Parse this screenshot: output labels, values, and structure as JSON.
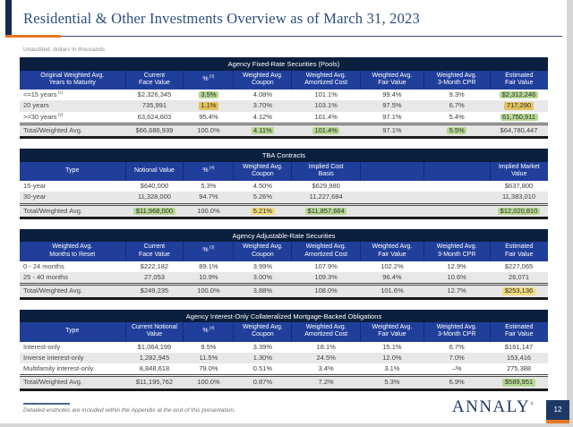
{
  "slide": {
    "title": "Residential & Other Investments Overview as of March 31, 2023",
    "subtitle": "Unaudited, dollars in thousands",
    "footnote": "Detailed endnotes are included within the Appendix at the end of this presentation.",
    "logo_text": "ANNALY",
    "logo_mark": "®",
    "page_number": "12"
  },
  "colors": {
    "accent_orange": "#e87722",
    "brand_navy": "#1d3865",
    "table_title_bar": "#0b1f3e",
    "column_header_blue": "#203f9a",
    "highlight_green": "#b6d893",
    "highlight_yellow": "#f1da7e",
    "highlight_gold": "#e2c25f"
  },
  "tables": [
    {
      "id": "agency-fixed-rate-securities",
      "title": "Agency Fixed-Rate Securities (Pools)",
      "headers": [
        {
          "text": "Original Weighted Avg.\nYears to Maturity"
        },
        {
          "text": "Current\nFace Value"
        },
        {
          "text": "%",
          "sup": "(3)"
        },
        {
          "text": "Weighted Avg.\nCoupon"
        },
        {
          "text": "Weighted Avg.\nAmortized Cost"
        },
        {
          "text": "Weighted Avg.\nFair Value"
        },
        {
          "text": "Weighted Avg.\n3-Month CPR"
        },
        {
          "text": "Estimated\nFair Value"
        }
      ],
      "rows": [
        [
          {
            "v": "<=15 years",
            "sup": "(1)"
          },
          {
            "v": "$2,326,345"
          },
          {
            "v": "3.5%",
            "hl": "g"
          },
          {
            "v": "4.08%"
          },
          {
            "v": "101.1%"
          },
          {
            "v": "99.4%"
          },
          {
            "v": "9.3%"
          },
          {
            "v": "$2,312,246",
            "hl": "g"
          }
        ],
        [
          {
            "v": "20 years"
          },
          {
            "v": "735,991"
          },
          {
            "v": "1.1%",
            "hl": "o"
          },
          {
            "v": "3.70%"
          },
          {
            "v": "103.1%"
          },
          {
            "v": "97.5%"
          },
          {
            "v": "6.7%"
          },
          {
            "v": "717,290",
            "hl": "o"
          }
        ],
        [
          {
            "v": ">=30 years",
            "sup": "(2)"
          },
          {
            "v": "63,624,603"
          },
          {
            "v": "95.4%"
          },
          {
            "v": "4.12%"
          },
          {
            "v": "101.4%"
          },
          {
            "v": "97.1%"
          },
          {
            "v": "5.4%"
          },
          {
            "v": "61,750,911",
            "hl": "g"
          }
        ]
      ],
      "total": [
        {
          "v": "Total/Weighted Avg."
        },
        {
          "v": "$66,686,939"
        },
        {
          "v": "100.0%"
        },
        {
          "v": "4.11%",
          "hl": "g"
        },
        {
          "v": "101.4%",
          "hl": "g"
        },
        {
          "v": "97.1%"
        },
        {
          "v": "5.5%",
          "hl": "g"
        },
        {
          "v": "$64,780,447"
        }
      ]
    },
    {
      "id": "tba-contracts",
      "title": "TBA Contracts",
      "headers": [
        {
          "text": "Type"
        },
        {
          "text": "Notional Value"
        },
        {
          "text": "%",
          "sup": "(4)"
        },
        {
          "text": "Weighted Avg.\nCoupon"
        },
        {
          "text": "Implied Cost\nBasis"
        },
        {
          "text": ""
        },
        {
          "text": ""
        },
        {
          "text": "Implied Market\nValue"
        }
      ],
      "rows": [
        [
          {
            "v": "15-year"
          },
          {
            "v": "$640,000"
          },
          {
            "v": "5.3%"
          },
          {
            "v": "4.50%"
          },
          {
            "v": "$629,980"
          },
          {
            "v": ""
          },
          {
            "v": ""
          },
          {
            "v": "$637,800"
          }
        ],
        [
          {
            "v": "30-year"
          },
          {
            "v": "11,328,000"
          },
          {
            "v": "94.7%"
          },
          {
            "v": "5.26%"
          },
          {
            "v": "11,227,684"
          },
          {
            "v": ""
          },
          {
            "v": ""
          },
          {
            "v": "11,383,010"
          }
        ]
      ],
      "total": [
        {
          "v": "Total/Weighted Avg."
        },
        {
          "v": "$11,968,000",
          "hl": "g"
        },
        {
          "v": "100.0%"
        },
        {
          "v": "5.21%",
          "hl": "y"
        },
        {
          "v": "$11,857,664",
          "hl": "g"
        },
        {
          "v": ""
        },
        {
          "v": ""
        },
        {
          "v": "$12,020,810",
          "hl": "g"
        }
      ]
    },
    {
      "id": "agency-adjustable-rate-securities",
      "title": "Agency Adjustable-Rate Securities",
      "headers": [
        {
          "text": "Weighted Avg.\nMonths to Reset"
        },
        {
          "text": "Current\nFace Value"
        },
        {
          "text": "%",
          "sup": "(3)"
        },
        {
          "text": "Weighted Avg.\nCoupon"
        },
        {
          "text": "Weighted Avg.\nAmortized Cost"
        },
        {
          "text": "Weighted Avg.\nFair Value"
        },
        {
          "text": "Weighted Avg.\n3-Month CPR"
        },
        {
          "text": "Estimated\nFair Value"
        }
      ],
      "rows": [
        [
          {
            "v": "0 - 24 months"
          },
          {
            "v": "$222,182"
          },
          {
            "v": "89.1%"
          },
          {
            "v": "3.99%"
          },
          {
            "v": "107.9%"
          },
          {
            "v": "102.2%"
          },
          {
            "v": "12.9%"
          },
          {
            "v": "$227,065"
          }
        ],
        [
          {
            "v": "25 - 40 months"
          },
          {
            "v": "27,053"
          },
          {
            "v": "10.9%"
          },
          {
            "v": "3.00%"
          },
          {
            "v": "109.3%"
          },
          {
            "v": "96.4%"
          },
          {
            "v": "10.6%"
          },
          {
            "v": "26,071"
          }
        ]
      ],
      "total": [
        {
          "v": "Total/Weighted Avg."
        },
        {
          "v": "$249,235"
        },
        {
          "v": "100.0%"
        },
        {
          "v": "3.88%"
        },
        {
          "v": "108.0%"
        },
        {
          "v": "101.6%"
        },
        {
          "v": "12.7%"
        },
        {
          "v": "$253,136",
          "hl": "y"
        }
      ]
    },
    {
      "id": "agency-interest-only-cmo",
      "title": "Agency Interest-Only Collateralized Mortgage-Backed Obligations",
      "headers": [
        {
          "text": "Type"
        },
        {
          "text": "Current Notional\nValue"
        },
        {
          "text": "%",
          "sup": "(4)"
        },
        {
          "text": "Weighted Avg.\nCoupon"
        },
        {
          "text": "Weighted Avg.\nAmortized Cost"
        },
        {
          "text": "Weighted Avg.\nFair Value"
        },
        {
          "text": "Weighted Avg.\n3-Month CPR"
        },
        {
          "text": "Estimated\nFair Value"
        }
      ],
      "rows": [
        [
          {
            "v": "Interest-only"
          },
          {
            "v": "$1,064,199"
          },
          {
            "v": "9.5%"
          },
          {
            "v": "3.39%"
          },
          {
            "v": "18.1%"
          },
          {
            "v": "15.1%"
          },
          {
            "v": "6.7%"
          },
          {
            "v": "$161,147"
          }
        ],
        [
          {
            "v": "Inverse interest-only"
          },
          {
            "v": "1,282,945"
          },
          {
            "v": "11.5%"
          },
          {
            "v": "1.30%"
          },
          {
            "v": "24.5%"
          },
          {
            "v": "12.0%"
          },
          {
            "v": "7.0%"
          },
          {
            "v": "153,416"
          }
        ],
        [
          {
            "v": "Multifamily interest-only"
          },
          {
            "v": "8,848,618"
          },
          {
            "v": "79.0%"
          },
          {
            "v": "0.51%"
          },
          {
            "v": "3.4%"
          },
          {
            "v": "3.1%"
          },
          {
            "v": "–%"
          },
          {
            "v": "275,388"
          }
        ]
      ],
      "total": [
        {
          "v": "Total/Weighted Avg."
        },
        {
          "v": "$11,195,762"
        },
        {
          "v": "100.0%"
        },
        {
          "v": "0.87%"
        },
        {
          "v": "7.2%"
        },
        {
          "v": "5.3%"
        },
        {
          "v": "6.9%"
        },
        {
          "v": "$589,951",
          "hl": "g"
        }
      ]
    }
  ]
}
